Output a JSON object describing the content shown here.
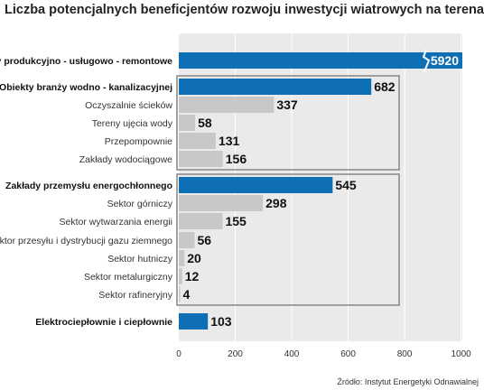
{
  "chart_data": {
    "type": "bar",
    "orientation": "horizontal",
    "title": "Liczba potencjalnych beneficjentów rozwoju inwestycji wiatrowych na terenach przemysłowych",
    "source": "Źródło: Instytut Energetyki Odnawialnej",
    "xlim": [
      0,
      1000
    ],
    "xticks": [
      "0",
      "200",
      "400",
      "600",
      "800",
      "1000"
    ],
    "grid": true,
    "colors": {
      "category": "#0f6fb5",
      "subcategory": "#c8c8c8",
      "group_frame": "#8c8c8c",
      "plot_bg": "#eaeaea"
    },
    "rows": [
      {
        "label": "Zakłady produkcyjno - usługowo - remontowe",
        "value": 5920,
        "display": "5920",
        "level": "category",
        "group": 0,
        "broken": true
      },
      {
        "label": "Obiekty branży wodno - kanalizacyjnej",
        "value": 682,
        "display": "682",
        "level": "category",
        "group": 1
      },
      {
        "label": "Oczyszalnie ścieków",
        "value": 337,
        "display": "337",
        "level": "sub",
        "group": 1
      },
      {
        "label": "Tereny ujęcia wody",
        "value": 58,
        "display": "58",
        "level": "sub",
        "group": 1
      },
      {
        "label": "Przepompownie",
        "value": 131,
        "display": "131",
        "level": "sub",
        "group": 1
      },
      {
        "label": "Zakłady wodociągowe",
        "value": 156,
        "display": "156",
        "level": "sub",
        "group": 1
      },
      {
        "label": "Zakłady przemysłu energochłonnego",
        "value": 545,
        "display": "545",
        "level": "category",
        "group": 2
      },
      {
        "label": "Sektor górniczy",
        "value": 298,
        "display": "298",
        "level": "sub",
        "group": 2
      },
      {
        "label": "Sektor wytwarzania energii",
        "value": 155,
        "display": "155",
        "level": "sub",
        "group": 2
      },
      {
        "label": "Sektor przesyłu i dystrybucji gazu ziemnego",
        "value": 56,
        "display": "56",
        "level": "sub",
        "group": 2
      },
      {
        "label": "Sektor hutniczy",
        "value": 20,
        "display": "20",
        "level": "sub",
        "group": 2
      },
      {
        "label": "Sektor metalurgiczny",
        "value": 12,
        "display": "12",
        "level": "sub",
        "group": 2
      },
      {
        "label": "Sektor rafineryjny",
        "value": 4,
        "display": "4",
        "level": "sub",
        "group": 2
      },
      {
        "label": "Elektrociepłownie i ciepłownie",
        "value": 103,
        "display": "103",
        "level": "category",
        "group": 3
      }
    ]
  }
}
